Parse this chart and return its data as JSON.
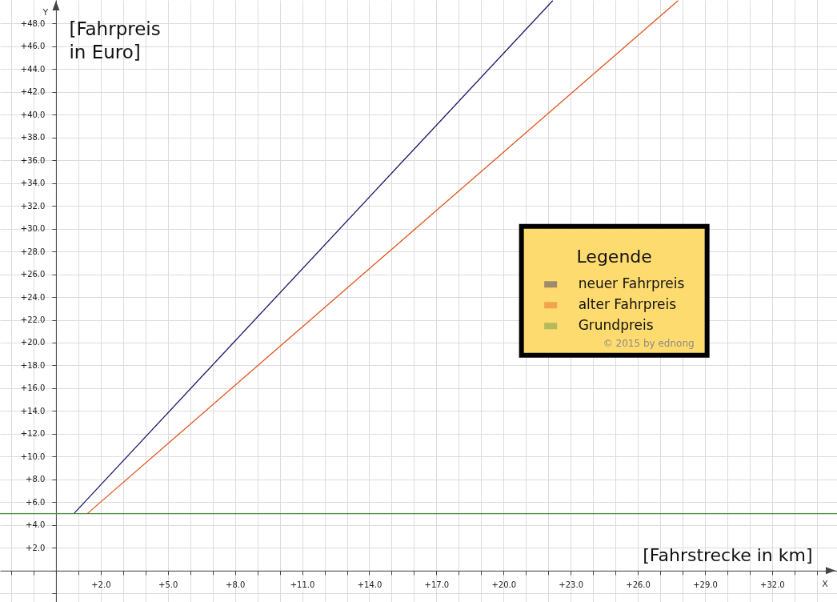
{
  "chart_data": {
    "type": "line",
    "xlabel": "[Fahrstrecke in km]",
    "ylabel": "[Fahrpreis\nin Euro]",
    "legend_title": "Legende",
    "legend": "right",
    "grid": true,
    "annotations": [
      "Y",
      "X",
      "© 2015 by ednong"
    ],
    "xlim": [
      -2.5,
      34.9
    ],
    "ylim": [
      -2.75,
      50.05
    ],
    "xticks": [
      {
        "value": -2,
        "label": null
      },
      {
        "value": -1,
        "label": null
      },
      {
        "value": 0,
        "label": null
      },
      {
        "value": 1,
        "label": null
      },
      {
        "value": 2,
        "label": "+2.0"
      },
      {
        "value": 3,
        "label": null
      },
      {
        "value": 4,
        "label": null
      },
      {
        "value": 5,
        "label": "+5.0"
      },
      {
        "value": 6,
        "label": null
      },
      {
        "value": 7,
        "label": null
      },
      {
        "value": 8,
        "label": "+8.0"
      },
      {
        "value": 9,
        "label": null
      },
      {
        "value": 10,
        "label": null
      },
      {
        "value": 11,
        "label": "+11.0"
      },
      {
        "value": 12,
        "label": null
      },
      {
        "value": 13,
        "label": null
      },
      {
        "value": 14,
        "label": "+14.0"
      },
      {
        "value": 15,
        "label": null
      },
      {
        "value": 16,
        "label": null
      },
      {
        "value": 17,
        "label": "+17.0"
      },
      {
        "value": 18,
        "label": null
      },
      {
        "value": 19,
        "label": null
      },
      {
        "value": 20,
        "label": "+20.0"
      },
      {
        "value": 21,
        "label": null
      },
      {
        "value": 22,
        "label": null
      },
      {
        "value": 23,
        "label": "+23.0"
      },
      {
        "value": 24,
        "label": null
      },
      {
        "value": 25,
        "label": null
      },
      {
        "value": 26,
        "label": "+26.0"
      },
      {
        "value": 27,
        "label": null
      },
      {
        "value": 28,
        "label": null
      },
      {
        "value": 29,
        "label": "+29.0"
      },
      {
        "value": 30,
        "label": null
      },
      {
        "value": 31,
        "label": null
      },
      {
        "value": 32,
        "label": "+32.0"
      },
      {
        "value": 33,
        "label": null
      },
      {
        "value": 34,
        "label": null
      }
    ],
    "yticks": [
      {
        "value": -2,
        "label": null
      },
      {
        "value": 0,
        "label": null
      },
      {
        "value": 2,
        "label": "+2.0"
      },
      {
        "value": 4,
        "label": "+4.0"
      },
      {
        "value": 6,
        "label": "+6.0"
      },
      {
        "value": 8,
        "label": "+8.0"
      },
      {
        "value": 10,
        "label": "+10.0"
      },
      {
        "value": 12,
        "label": "+12.0"
      },
      {
        "value": 14,
        "label": "+14.0"
      },
      {
        "value": 16,
        "label": "+16.0"
      },
      {
        "value": 18,
        "label": "+18.0"
      },
      {
        "value": 20,
        "label": "+20.0"
      },
      {
        "value": 22,
        "label": "+22.0"
      },
      {
        "value": 24,
        "label": "+24.0"
      },
      {
        "value": 26,
        "label": "+26.0"
      },
      {
        "value": 28,
        "label": "+28.0"
      },
      {
        "value": 30,
        "label": "+30.0"
      },
      {
        "value": 32,
        "label": "+32.0"
      },
      {
        "value": 34,
        "label": "+34.0"
      },
      {
        "value": 36,
        "label": "+36.0"
      },
      {
        "value": 38,
        "label": "+38.0"
      },
      {
        "value": 40,
        "label": "+40.0"
      },
      {
        "value": 42,
        "label": "+42.0"
      },
      {
        "value": 44,
        "label": "+44.0"
      },
      {
        "value": 46,
        "label": "+46.0"
      },
      {
        "value": 48,
        "label": "+48.0"
      }
    ],
    "series": [
      {
        "name": "neuer Fahrpreis",
        "color": "#1f1a6b",
        "x": [
          0.8,
          22.2
        ],
        "values": [
          5,
          50
        ]
      },
      {
        "name": "alter Fahrpreis",
        "color": "#e0561e",
        "x": [
          1.4,
          27.8
        ],
        "values": [
          5,
          50
        ]
      },
      {
        "name": "Grundpreis",
        "color": "#4f8a3f",
        "x": [
          -2.5,
          34.9
        ],
        "values": [
          5,
          5
        ]
      }
    ]
  }
}
